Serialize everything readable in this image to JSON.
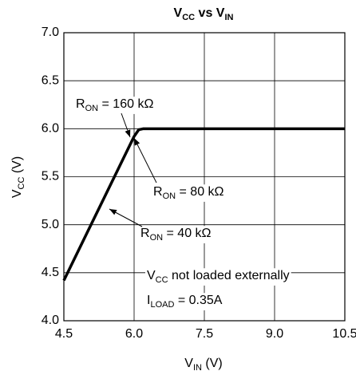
{
  "chart_data": {
    "type": "line",
    "title": [
      "V",
      "CC",
      " vs V",
      "IN"
    ],
    "x_label": [
      "V",
      "IN",
      " (V)"
    ],
    "y_label": [
      "V",
      "CC",
      " (V)"
    ],
    "x": [
      4.5,
      5.0,
      5.5,
      5.9,
      6.0,
      6.1,
      6.2,
      7.5,
      9.0,
      10.5
    ],
    "series": [
      {
        "color": "#000000",
        "values": [
          4.42,
          4.92,
          5.42,
          5.82,
          5.92,
          5.99,
          6.0,
          6.0,
          6.0,
          6.0
        ]
      }
    ],
    "xlim": [
      4.5,
      10.5
    ],
    "ylim": [
      4.0,
      7.0
    ],
    "xticks": [
      4.5,
      {
        "value": 6.0,
        "label": "6.0"
      },
      7.5,
      {
        "value": 9.0,
        "label": "9.0"
      },
      10.5
    ],
    "yticks": [
      {
        "value": 4.0,
        "label": "4.0"
      },
      4.5,
      {
        "value": 5.0,
        "label": "5.0"
      },
      5.5,
      {
        "value": 6.0,
        "label": "6.0"
      },
      6.5,
      {
        "value": 7.0,
        "label": "7.0"
      }
    ],
    "grid": true,
    "annotations": [
      [
        "R",
        "ON",
        " = 160 kΩ"
      ],
      [
        "R",
        "ON",
        " = 80 kΩ"
      ],
      [
        "R",
        "ON",
        " = 40 kΩ"
      ],
      [
        "V",
        "CC",
        " not loaded externally"
      ],
      [
        "I",
        "LOAD",
        " = 0.35A"
      ]
    ]
  }
}
